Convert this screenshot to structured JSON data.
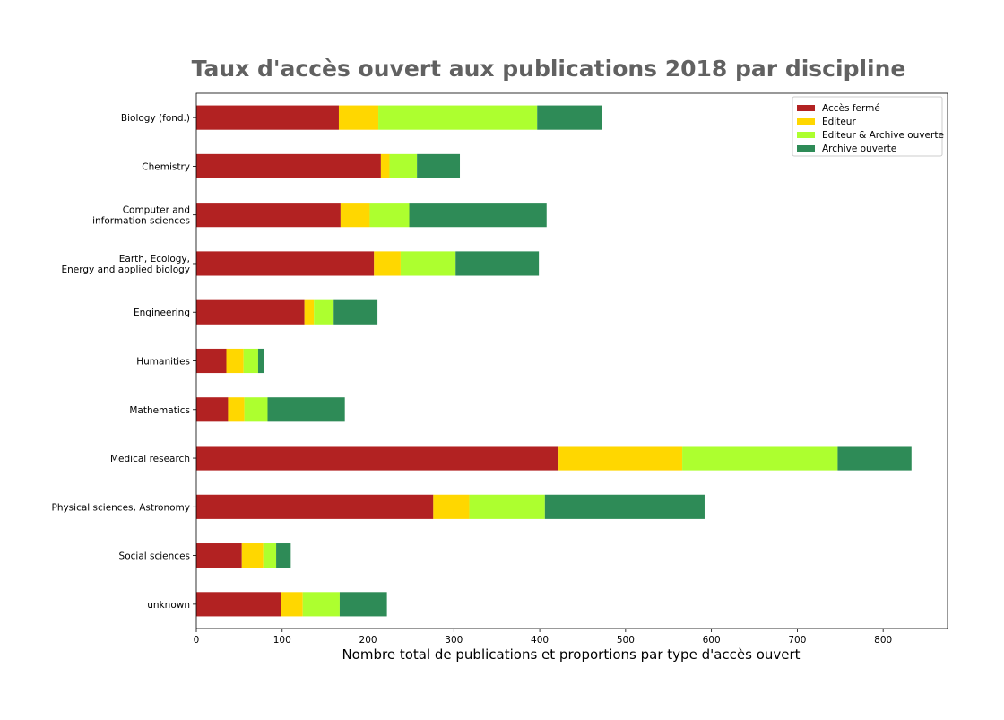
{
  "chart_data": {
    "type": "bar",
    "orientation": "horizontal",
    "stacked": true,
    "title": "Taux d'accès ouvert aux publications 2018 par discipline",
    "xlabel": "Nombre total de publications et proportions par type d'accès ouvert",
    "ylabel": "",
    "xlim": [
      0,
      875
    ],
    "xticks": [
      0,
      100,
      200,
      300,
      400,
      500,
      600,
      700,
      800
    ],
    "grid": false,
    "legend_position": "top-right",
    "categories": [
      [
        "Biology (fond.)"
      ],
      [
        "Chemistry"
      ],
      [
        "Computer and",
        "information sciences"
      ],
      [
        "Earth, Ecology,",
        "Energy and applied biology"
      ],
      [
        "Engineering"
      ],
      [
        "Humanities"
      ],
      [
        "Mathematics"
      ],
      [
        "Medical research"
      ],
      [
        "Physical sciences, Astronomy"
      ],
      [
        "Social sciences"
      ],
      [
        "unknown"
      ]
    ],
    "series": [
      {
        "name": "Accès fermé",
        "color": "#b22222",
        "values": [
          166,
          215,
          168,
          207,
          126,
          35,
          37,
          422,
          276,
          53,
          99
        ]
      },
      {
        "name": "Editeur",
        "color": "#ffd700",
        "values": [
          46,
          10,
          34,
          31,
          11,
          20,
          19,
          144,
          42,
          25,
          25
        ]
      },
      {
        "name": "Editeur & Archive ouverte",
        "color": "#adff2f",
        "values": [
          185,
          32,
          46,
          64,
          23,
          17,
          27,
          181,
          88,
          15,
          43
        ]
      },
      {
        "name": "Archive ouverte",
        "color": "#2e8b57",
        "values": [
          76,
          50,
          160,
          97,
          51,
          7,
          90,
          86,
          186,
          17,
          55
        ]
      }
    ]
  }
}
